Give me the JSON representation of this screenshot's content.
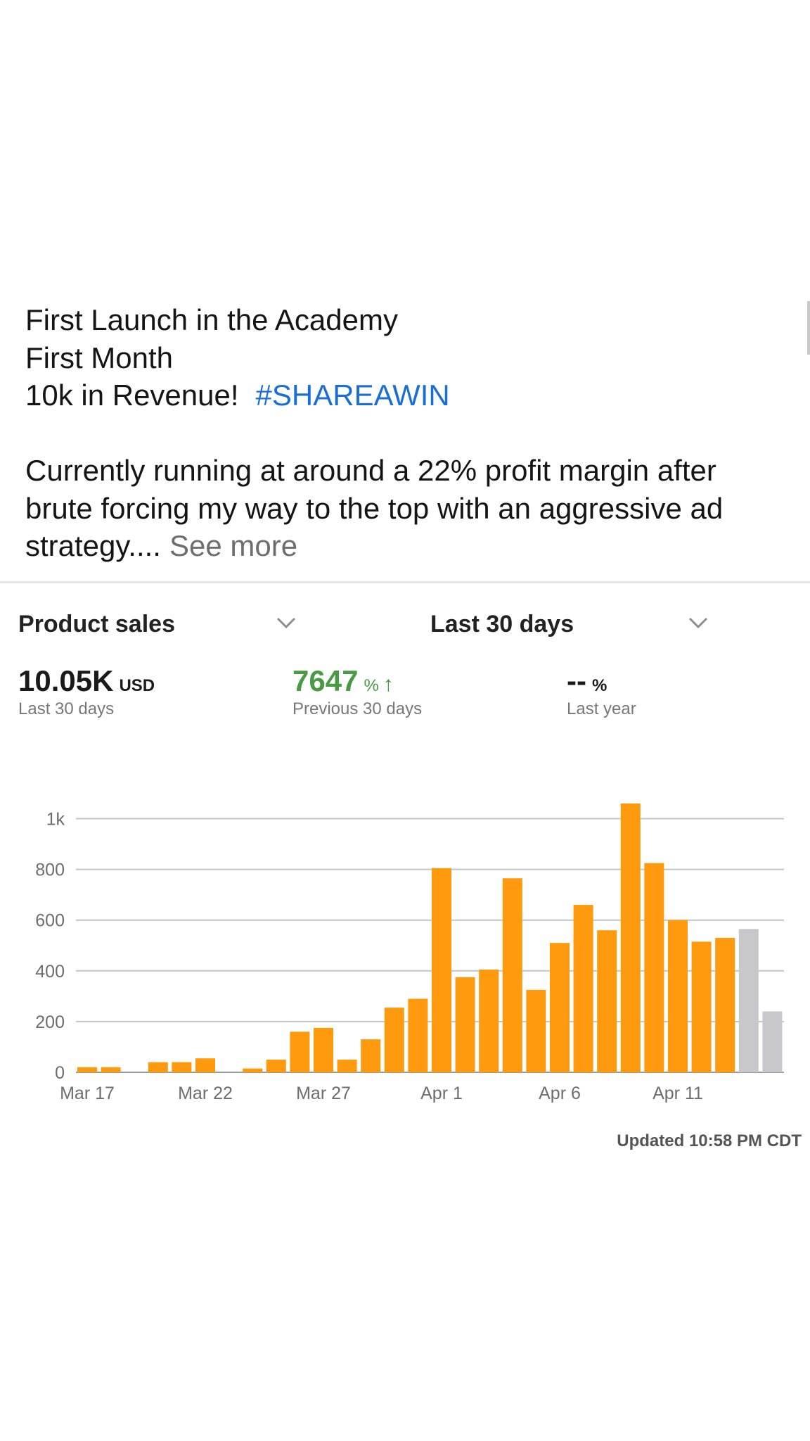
{
  "post": {
    "line1": "First Launch in the Academy",
    "line2": "First Month",
    "line3": "10k in Revenue!",
    "hashtag": "#SHAREAWIN",
    "body_line1": "Currently running at around a 22% profit margin after",
    "body_line2": "brute forcing my way to the top with an aggressive ad",
    "body_line3": "strategy....",
    "see_more": "See more"
  },
  "dashboard": {
    "metric_selector": "Product sales",
    "period_selector": "Last 30 days",
    "total": {
      "value": "10.05K",
      "unit": "USD",
      "label": "Last 30 days"
    },
    "prev_change": {
      "value": "7647",
      "unit": "%",
      "arrow": "↑",
      "label": "Previous 30 days"
    },
    "yoy_change": {
      "value": "--",
      "unit": "%",
      "label": "Last year"
    },
    "updated": "Updated 10:58 PM CDT",
    "accent_color": "#ff9a0f",
    "pending_color": "#c8c8cc",
    "positive_color": "#4a9a44"
  },
  "chart_data": {
    "type": "bar",
    "ylim": [
      0,
      1100
    ],
    "yticks": [
      0,
      200,
      400,
      600,
      800,
      1000
    ],
    "ytick_labels": [
      "0",
      "200",
      "400",
      "600",
      "800",
      "1k"
    ],
    "x_labels": [
      {
        "index": 0,
        "label": "Mar 17"
      },
      {
        "index": 5,
        "label": "Mar 22"
      },
      {
        "index": 10,
        "label": "Mar 27"
      },
      {
        "index": 15,
        "label": "Apr 1"
      },
      {
        "index": 20,
        "label": "Apr 6"
      },
      {
        "index": 25,
        "label": "Apr 11"
      }
    ],
    "values": [
      20,
      20,
      0,
      40,
      40,
      55,
      0,
      15,
      50,
      160,
      175,
      50,
      130,
      255,
      290,
      805,
      375,
      405,
      765,
      325,
      510,
      660,
      560,
      1060,
      825,
      600,
      515,
      530,
      565,
      240
    ],
    "pending": [
      false,
      false,
      false,
      false,
      false,
      false,
      false,
      false,
      false,
      false,
      false,
      false,
      false,
      false,
      false,
      false,
      false,
      false,
      false,
      false,
      false,
      false,
      false,
      false,
      false,
      false,
      false,
      false,
      true,
      true
    ]
  }
}
